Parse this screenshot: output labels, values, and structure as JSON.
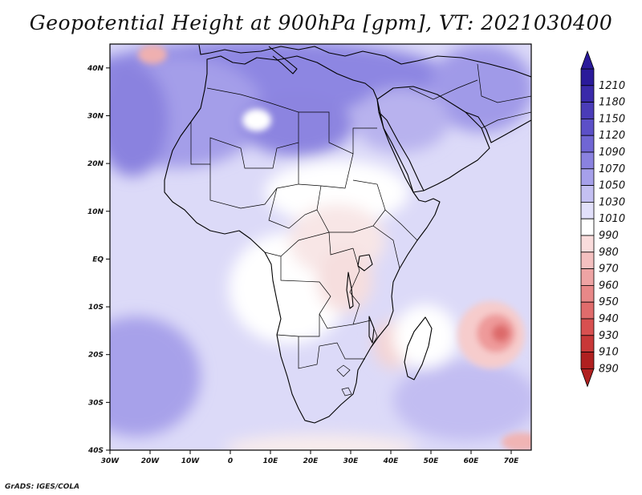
{
  "title": "Geopotential Height at 900hPa [gpm], VT: 2021030400",
  "footer": "GrADS: IGES/COLA",
  "map": {
    "lon_range": [
      -30,
      75
    ],
    "lat_range": [
      -40,
      45
    ],
    "lon_ticks": [
      "30W",
      "20W",
      "10W",
      "0",
      "10E",
      "20E",
      "30E",
      "40E",
      "50E",
      "60E",
      "70E"
    ],
    "lat_ticks": [
      "40N",
      "30N",
      "20N",
      "10N",
      "EQ",
      "10S",
      "20S",
      "30S",
      "40S"
    ]
  },
  "colorbar": {
    "labels": [
      "1210",
      "1180",
      "1150",
      "1120",
      "1090",
      "1070",
      "1050",
      "1030",
      "1010",
      "990",
      "980",
      "970",
      "960",
      "950",
      "940",
      "930",
      "910",
      "890"
    ],
    "colors": [
      "#2a1a9a",
      "#3a2aaa",
      "#4a3cb8",
      "#5c50c8",
      "#7066d4",
      "#8a82e0",
      "#a6a0ea",
      "#c4c0f2",
      "#e2e0fa",
      "#ffffff",
      "#fadcdc",
      "#f4c0c0",
      "#eea4a4",
      "#e88888",
      "#e06c6c",
      "#d85050",
      "#c83838",
      "#b02020"
    ]
  }
}
